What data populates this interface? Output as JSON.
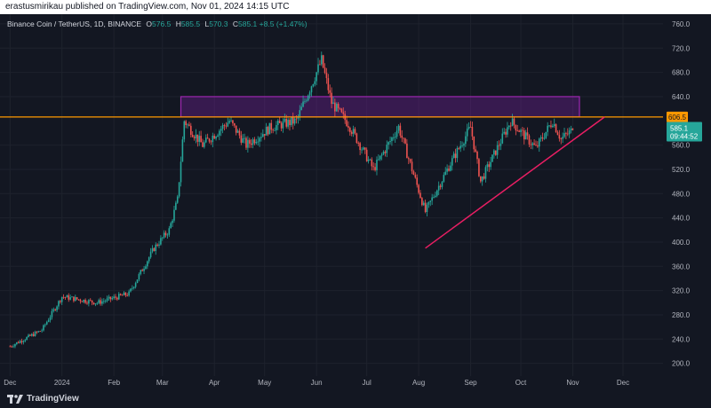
{
  "header": {
    "published_text": "erastusmirikau published on TradingView.com, Nov 01, 2024 14:15 UTC"
  },
  "legend": {
    "symbol": "Binance Coin / TetherUS, 1D, BINANCE",
    "o_label": "O",
    "o_value": "576.5",
    "h_label": "H",
    "h_value": "585.5",
    "l_label": "L",
    "l_value": "570.3",
    "c_label": "C",
    "c_value": "585.1",
    "change": "+8.5 (+1.47%)"
  },
  "price_tags": {
    "level_value": "606.5",
    "last_value": "585.1",
    "countdown": "09:44:52"
  },
  "footer": {
    "brand": "TradingView"
  },
  "colors": {
    "background": "#131722",
    "up": "#26a69a",
    "down": "#ef5350",
    "level_line": "#ff9800",
    "zone_border": "#9c27b0",
    "zone_fill": "#7b1fa2",
    "trendline": "#e91e63"
  },
  "chart_data": {
    "type": "candlestick",
    "title": "Binance Coin / TetherUS, 1D, BINANCE",
    "x_tick_labels": [
      "Dec",
      "2024",
      "Feb",
      "Mar",
      "Apr",
      "May",
      "Jun",
      "Jul",
      "Aug",
      "Sep",
      "Oct",
      "Nov",
      "Dec"
    ],
    "y_tick_labels": [
      "200.0",
      "240.0",
      "280.0",
      "320.0",
      "360.0",
      "400.0",
      "440.0",
      "480.0",
      "520.0",
      "560.0",
      "640.0",
      "680.0",
      "720.0",
      "760.0"
    ],
    "ylim": [
      180,
      775
    ],
    "last_ohlc": {
      "open": 576.5,
      "high": 585.5,
      "low": 570.3,
      "close": 585.1
    },
    "price_path_key_points": [
      {
        "date": "2023-12-01",
        "price": 228
      },
      {
        "date": "2023-12-20",
        "price": 255
      },
      {
        "date": "2024-01-01",
        "price": 310
      },
      {
        "date": "2024-01-22",
        "price": 300
      },
      {
        "date": "2024-02-10",
        "price": 315
      },
      {
        "date": "2024-02-25",
        "price": 390
      },
      {
        "date": "2024-03-05",
        "price": 420
      },
      {
        "date": "2024-03-10",
        "price": 470
      },
      {
        "date": "2024-03-14",
        "price": 600
      },
      {
        "date": "2024-03-25",
        "price": 560
      },
      {
        "date": "2024-04-10",
        "price": 600
      },
      {
        "date": "2024-04-20",
        "price": 560
      },
      {
        "date": "2024-05-05",
        "price": 590
      },
      {
        "date": "2024-05-20",
        "price": 600
      },
      {
        "date": "2024-06-04",
        "price": 700
      },
      {
        "date": "2024-06-10",
        "price": 630
      },
      {
        "date": "2024-06-20",
        "price": 595
      },
      {
        "date": "2024-07-05",
        "price": 520
      },
      {
        "date": "2024-07-20",
        "price": 590
      },
      {
        "date": "2024-08-05",
        "price": 450
      },
      {
        "date": "2024-08-20",
        "price": 530
      },
      {
        "date": "2024-09-01",
        "price": 590
      },
      {
        "date": "2024-09-07",
        "price": 500
      },
      {
        "date": "2024-09-25",
        "price": 600
      },
      {
        "date": "2024-10-10",
        "price": 555
      },
      {
        "date": "2024-10-20",
        "price": 600
      },
      {
        "date": "2024-10-25",
        "price": 570
      },
      {
        "date": "2024-11-01",
        "price": 585.1
      }
    ],
    "annotations": {
      "horizontal_level": 606.5,
      "resistance_zone": {
        "from": "2024-03-12",
        "to": "2024-11-05",
        "low": 606.5,
        "high": 640
      },
      "ascending_trendline": {
        "start": {
          "date": "2024-08-05",
          "price": 390
        },
        "end": {
          "date": "2024-11-20",
          "price": 606.5
        }
      }
    },
    "grid": true,
    "legend": "top-left"
  }
}
